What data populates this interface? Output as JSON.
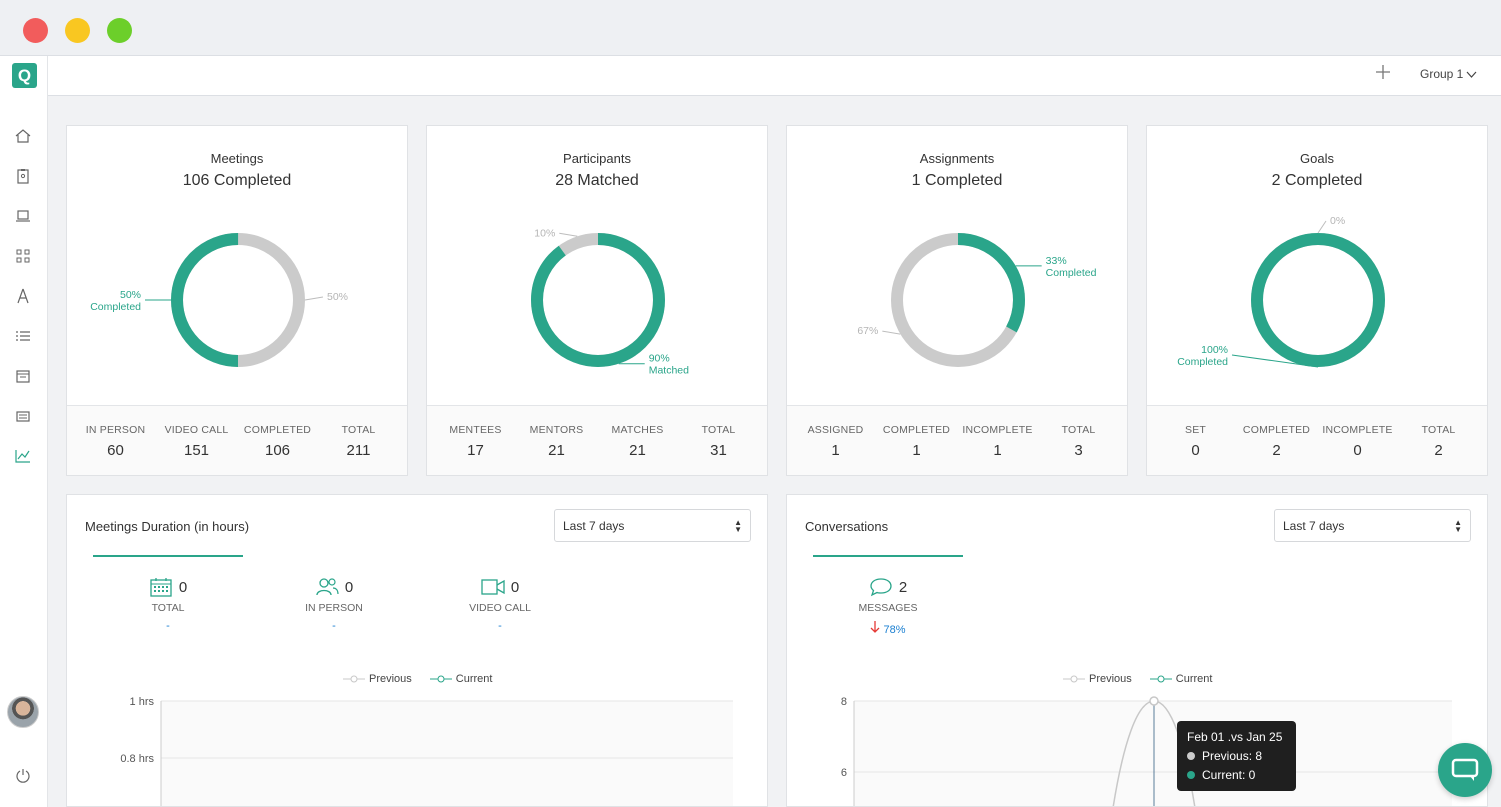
{
  "colors": {
    "accent": "#2aa58a",
    "grey": "#cbcbcb",
    "link": "#1a7fd1",
    "down": "#e53935"
  },
  "topbar": {
    "group_label": "Group 1"
  },
  "cards": [
    {
      "title": "Meetings",
      "subtitle": "106 Completed",
      "donut": {
        "green_fraction": 0.5,
        "green_start": "bottom"
      },
      "labels": {
        "green_pct": "50%",
        "green_word": "Completed",
        "grey_pct": "50%"
      },
      "stats": [
        {
          "label": "IN PERSON",
          "value": "60"
        },
        {
          "label": "VIDEO CALL",
          "value": "151"
        },
        {
          "label": "COMPLETED",
          "value": "106"
        },
        {
          "label": "TOTAL",
          "value": "211"
        }
      ]
    },
    {
      "title": "Participants",
      "subtitle": "28 Matched",
      "donut": {
        "green_fraction": 0.9
      },
      "labels": {
        "green_pct": "90%",
        "green_word": "Matched",
        "grey_pct": "10%"
      },
      "stats": [
        {
          "label": "MENTEES",
          "value": "17"
        },
        {
          "label": "MENTORS",
          "value": "21"
        },
        {
          "label": "MATCHES",
          "value": "21"
        },
        {
          "label": "TOTAL",
          "value": "31"
        }
      ]
    },
    {
      "title": "Assignments",
      "subtitle": "1 Completed",
      "donut": {
        "green_fraction": 0.33
      },
      "labels": {
        "green_pct": "33%",
        "green_word": "Completed",
        "grey_pct": "67%"
      },
      "stats": [
        {
          "label": "ASSIGNED",
          "value": "1"
        },
        {
          "label": "COMPLETED",
          "value": "1"
        },
        {
          "label": "INCOMPLETE",
          "value": "1"
        },
        {
          "label": "TOTAL",
          "value": "3"
        }
      ]
    },
    {
      "title": "Goals",
      "subtitle": "2 Completed",
      "donut": {
        "green_fraction": 1.0
      },
      "labels": {
        "green_pct": "100%",
        "green_word": "Completed",
        "grey_pct": "0%"
      },
      "stats": [
        {
          "label": "SET",
          "value": "0"
        },
        {
          "label": "COMPLETED",
          "value": "2"
        },
        {
          "label": "INCOMPLETE",
          "value": "0"
        },
        {
          "label": "TOTAL",
          "value": "2"
        }
      ]
    }
  ],
  "duration_panel": {
    "title": "Meetings Duration (in hours)",
    "range": "Last 7 days",
    "metrics": [
      {
        "icon": "calendar-icon",
        "value": "0",
        "label": "TOTAL",
        "change": "-"
      },
      {
        "icon": "people-icon",
        "value": "0",
        "label": "IN PERSON",
        "change": "-"
      },
      {
        "icon": "video-icon",
        "value": "0",
        "label": "VIDEO CALL",
        "change": "-"
      }
    ],
    "legend": [
      "Previous",
      "Current"
    ],
    "y_ticks": [
      "1 hrs",
      "0.8 hrs"
    ]
  },
  "conversations_panel": {
    "title": "Conversations",
    "range": "Last 7 days",
    "metric": {
      "icon": "chat-icon",
      "value": "2",
      "label": "MESSAGES",
      "change": "78%",
      "direction": "down"
    },
    "legend": [
      "Previous",
      "Current"
    ],
    "y_ticks": [
      "8",
      "6"
    ],
    "tooltip": {
      "title": "Feb 01 .vs Jan 25",
      "previous": "Previous: 8",
      "current": "Current: 0"
    }
  }
}
